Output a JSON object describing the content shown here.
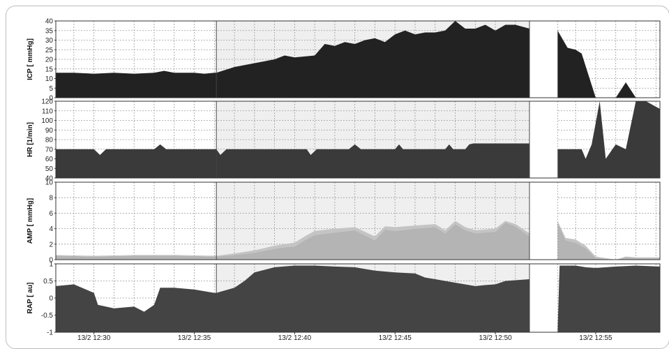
{
  "chart_data": {
    "type": "area",
    "x_tick_labels": [
      "13/2 12:30",
      "13/2 12:35",
      "13/2 12:40",
      "13/2 12:45",
      "13/2 12:50",
      "13/2 12:55"
    ],
    "x_tick_minutes": [
      30,
      35,
      40,
      45,
      50,
      55
    ],
    "x_range_minutes": [
      28.1,
      58.2
    ],
    "highlight_window_minutes": [
      36.1,
      51.7
    ],
    "gap_minutes": [
      51.7,
      53.1
    ],
    "panels": [
      {
        "ylabel": "ICP [ mmHg]",
        "ylim": [
          0,
          40
        ],
        "yticks": [
          0,
          5,
          10,
          15,
          20,
          25,
          30,
          35,
          40
        ],
        "fill": "#222222",
        "x": [
          28.1,
          29,
          30,
          31,
          32,
          33,
          33.5,
          34,
          35,
          35.5,
          36,
          36.1,
          37,
          38,
          39,
          39.5,
          40,
          41,
          41.5,
          42,
          42.5,
          43,
          43.5,
          44,
          44.5,
          45,
          45.5,
          46,
          46.5,
          47,
          47.5,
          48,
          48.5,
          49,
          49.5,
          50,
          50.5,
          51,
          51.7,
          53.1,
          53.6,
          54,
          54.3,
          55,
          56,
          56.5,
          57,
          58.2
        ],
        "y": [
          13,
          13,
          12.5,
          13,
          12.5,
          13,
          14,
          13,
          13,
          12.5,
          13,
          13,
          16,
          18,
          20,
          22,
          21,
          22,
          28,
          27,
          29,
          28,
          30,
          31,
          29,
          33,
          35,
          33,
          34,
          34,
          35,
          40,
          36,
          36,
          38,
          35,
          38,
          38,
          36,
          35,
          26,
          25,
          23,
          0,
          0,
          8,
          0,
          0
        ]
      },
      {
        "ylabel": "HR [1/min]",
        "ylim": [
          40,
          120
        ],
        "yticks": [
          40,
          50,
          60,
          70,
          80,
          90,
          100,
          110,
          120
        ],
        "fill": "#3a3a3a",
        "x": [
          28.1,
          30,
          30.3,
          30.6,
          33,
          33.3,
          33.6,
          36.1,
          36.3,
          36.6,
          40.6,
          40.8,
          41.1,
          42.7,
          43,
          43.3,
          45,
          45.2,
          45.4,
          47.5,
          47.7,
          47.9,
          48.5,
          48.7,
          48.9,
          51.7,
          53.1,
          54.3,
          54.5,
          54.8,
          55.2,
          55.5,
          56,
          56.5,
          57,
          57.5,
          58.2
        ],
        "y": [
          70,
          70,
          64,
          70,
          70,
          75,
          70,
          70,
          64,
          70,
          70,
          64,
          70,
          70,
          75,
          70,
          70,
          75,
          70,
          70,
          75,
          70,
          70,
          75,
          76,
          76,
          70,
          70,
          60,
          75,
          120,
          60,
          75,
          70,
          120,
          120,
          112
        ]
      },
      {
        "ylabel": "AMP [ mmHg]",
        "ylim": [
          0,
          10
        ],
        "yticks": [
          0,
          2,
          4,
          6,
          8,
          10
        ],
        "fill": "#b4b4b4",
        "x": [
          28.1,
          30,
          32,
          34,
          36.1,
          37,
          38,
          39,
          39.5,
          40,
          40.5,
          41,
          42,
          43,
          44,
          44.5,
          45,
          46,
          47,
          47.5,
          48,
          48.5,
          49,
          50,
          50.5,
          51,
          51.7,
          53.1,
          53.5,
          54,
          54.5,
          55,
          56,
          56.5,
          57,
          58.2
        ],
        "y": [
          0.5,
          0.4,
          0.5,
          0.5,
          0.4,
          0.6,
          0.9,
          1.4,
          1.6,
          1.7,
          2.5,
          3.2,
          3.5,
          3.8,
          2.5,
          3.9,
          3.7,
          4,
          4.2,
          3.4,
          4.6,
          3.8,
          3.4,
          3.6,
          4.8,
          4.3,
          3,
          4.8,
          2.5,
          2.2,
          1.5,
          0.2,
          0,
          0.3,
          0.2,
          0.2
        ],
        "y_hi": [
          0.6,
          0.5,
          0.6,
          0.6,
          0.5,
          0.8,
          1.2,
          1.8,
          2,
          2.2,
          3,
          3.7,
          4,
          4.2,
          3,
          4.3,
          4.2,
          4.4,
          4.6,
          3.8,
          5,
          4.2,
          3.8,
          4,
          5,
          4.6,
          3.4,
          5,
          2.8,
          2.6,
          1.8,
          0.4,
          0,
          0.4,
          0.3,
          0.3
        ]
      },
      {
        "ylabel": "RAP [ au]",
        "ylim": [
          -1,
          1
        ],
        "yticks": [
          -1,
          -0.5,
          0,
          0.5,
          1
        ],
        "ytick_labels": [
          "-1",
          "-0.5",
          "0",
          "0.5",
          "1"
        ],
        "fill": "#444444",
        "x": [
          28.1,
          29,
          30,
          30.2,
          31,
          32,
          32.5,
          33,
          33.3,
          34,
          35,
          36,
          36.1,
          37,
          37.5,
          38,
          39,
          40,
          41,
          42,
          43,
          44,
          45,
          46,
          46.5,
          47,
          48,
          49,
          49.5,
          50,
          50.5,
          51.7,
          53.1,
          53.2,
          54,
          54.5,
          55,
          56,
          57,
          58.2
        ],
        "y": [
          0.35,
          0.4,
          0.15,
          -0.2,
          -0.3,
          -0.25,
          -0.4,
          -0.2,
          0.3,
          0.3,
          0.25,
          0.15,
          0.15,
          0.3,
          0.5,
          0.75,
          0.9,
          0.95,
          0.95,
          0.92,
          0.9,
          0.8,
          0.75,
          0.72,
          0.6,
          0.55,
          0.45,
          0.35,
          0.38,
          0.4,
          0.5,
          0.55,
          -1,
          0.95,
          0.95,
          0.9,
          0.88,
          0.92,
          0.95,
          0.92
        ]
      }
    ]
  }
}
